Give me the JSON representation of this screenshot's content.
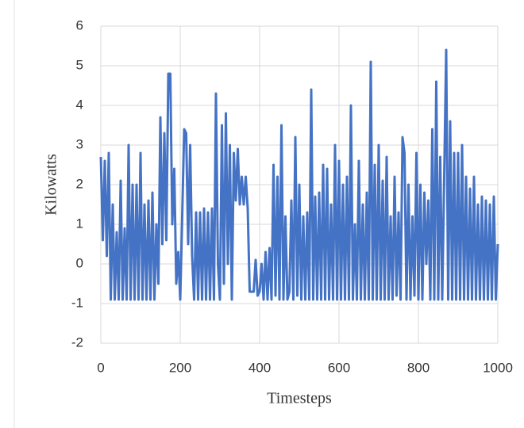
{
  "chart_data": {
    "type": "line",
    "xlabel": "Timesteps",
    "ylabel": "Kilowatts",
    "x": [
      0,
      5,
      10,
      15,
      20,
      25,
      30,
      35,
      40,
      45,
      50,
      55,
      60,
      65,
      70,
      75,
      80,
      85,
      90,
      95,
      100,
      105,
      110,
      115,
      120,
      125,
      130,
      135,
      140,
      145,
      150,
      155,
      160,
      165,
      170,
      175,
      180,
      185,
      190,
      195,
      200,
      205,
      210,
      215,
      220,
      225,
      230,
      235,
      240,
      245,
      250,
      255,
      260,
      265,
      270,
      275,
      280,
      285,
      290,
      295,
      300,
      305,
      310,
      315,
      320,
      325,
      330,
      335,
      340,
      345,
      350,
      355,
      360,
      365,
      370,
      375,
      380,
      385,
      390,
      395,
      400,
      405,
      410,
      415,
      420,
      425,
      430,
      435,
      440,
      445,
      450,
      455,
      460,
      465,
      470,
      475,
      480,
      485,
      490,
      495,
      500,
      505,
      510,
      515,
      520,
      525,
      530,
      535,
      540,
      545,
      550,
      555,
      560,
      565,
      570,
      575,
      580,
      585,
      590,
      595,
      600,
      605,
      610,
      615,
      620,
      625,
      630,
      635,
      640,
      645,
      650,
      655,
      660,
      665,
      670,
      675,
      680,
      685,
      690,
      695,
      700,
      705,
      710,
      715,
      720,
      725,
      730,
      735,
      740,
      745,
      750,
      755,
      760,
      765,
      770,
      775,
      780,
      785,
      790,
      795,
      800,
      805,
      810,
      815,
      820,
      825,
      830,
      835,
      840,
      845,
      850,
      855,
      860,
      865,
      870,
      875,
      880,
      885,
      890,
      895,
      900,
      905,
      910,
      915,
      920,
      925,
      930,
      935,
      940,
      945,
      950,
      955,
      960,
      965,
      970,
      975,
      980,
      985,
      990,
      995,
      1000
    ],
    "series": [
      {
        "color": "#4472c4",
        "values": [
          2.7,
          0.6,
          2.6,
          0.2,
          2.8,
          -0.9,
          1.5,
          -0.9,
          0.8,
          -0.9,
          2.1,
          -0.9,
          0.9,
          -0.9,
          3.0,
          -0.9,
          2.0,
          -0.9,
          2.0,
          -0.9,
          2.8,
          -0.9,
          1.5,
          -0.9,
          1.6,
          -0.9,
          1.8,
          -0.9,
          1.0,
          -0.5,
          3.7,
          0.5,
          3.3,
          0.6,
          4.8,
          4.8,
          1.0,
          2.4,
          -0.5,
          0.3,
          -0.9,
          1.2,
          3.4,
          3.3,
          0.5,
          3.0,
          0.2,
          -0.9,
          1.3,
          -0.9,
          1.3,
          -0.9,
          1.4,
          -0.9,
          1.3,
          -0.9,
          1.4,
          -0.9,
          4.3,
          0.0,
          -0.9,
          3.5,
          -0.5,
          3.8,
          0.0,
          3.0,
          -0.9,
          2.8,
          1.6,
          2.9,
          1.5,
          2.2,
          1.5,
          2.2,
          1.4,
          -0.7,
          -0.7,
          -0.7,
          0.1,
          -0.8,
          -0.7,
          0.0,
          -0.9,
          0.3,
          -0.9,
          0.4,
          -0.9,
          2.5,
          -0.8,
          2.2,
          -0.9,
          3.5,
          -0.9,
          1.2,
          -0.9,
          -0.7,
          1.6,
          -0.9,
          3.2,
          -0.8,
          2.0,
          -0.9,
          1.2,
          -0.9,
          1.3,
          -0.9,
          4.4,
          -0.9,
          1.7,
          -0.9,
          1.8,
          -0.9,
          2.5,
          -0.9,
          2.4,
          -0.9,
          1.5,
          -0.9,
          3.0,
          -0.9,
          2.6,
          -0.9,
          2.0,
          -0.9,
          2.2,
          -0.9,
          4.0,
          -0.9,
          1.0,
          -0.9,
          2.6,
          -0.9,
          1.5,
          -0.9,
          1.8,
          -0.9,
          5.1,
          -0.9,
          2.5,
          -0.9,
          3.0,
          -0.9,
          2.1,
          -0.9,
          2.7,
          -0.9,
          1.2,
          -0.9,
          2.2,
          -0.8,
          1.3,
          -0.9,
          3.2,
          2.8,
          -0.9,
          2.0,
          -0.9,
          1.2,
          -0.8,
          2.8,
          -0.9,
          2.0,
          -0.9,
          1.8,
          0.0,
          1.6,
          -0.9,
          3.4,
          -0.9,
          4.6,
          -0.9,
          2.7,
          -0.9,
          2.2,
          5.4,
          -0.9,
          3.6,
          -0.9,
          2.8,
          -0.9,
          2.8,
          -0.9,
          3.0,
          -0.9,
          2.2,
          -0.9,
          1.9,
          -0.9,
          2.2,
          -0.9,
          1.5,
          -0.9,
          1.7,
          -0.9,
          1.6,
          -0.9,
          1.5,
          -0.9,
          1.7,
          -0.9,
          0.5
        ]
      }
    ],
    "xlim": [
      0,
      1000
    ],
    "xticks": [
      0,
      200,
      400,
      600,
      800,
      1000
    ],
    "ylim": [
      -2,
      6
    ],
    "yticks": [
      -2,
      -1,
      0,
      1,
      2,
      3,
      4,
      5,
      6
    ],
    "grid": true
  }
}
